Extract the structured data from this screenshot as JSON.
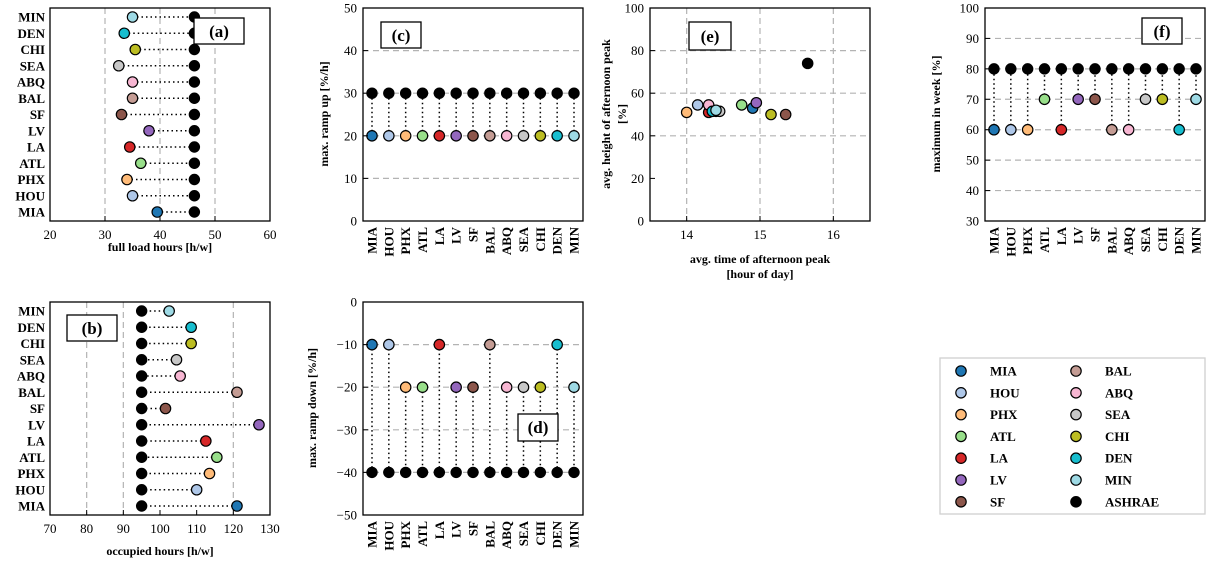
{
  "figure": {
    "cities": [
      "MIA",
      "HOU",
      "PHX",
      "ATL",
      "LA",
      "LV",
      "SF",
      "BAL",
      "ABQ",
      "SEA",
      "CHI",
      "DEN",
      "MIN"
    ],
    "colors": {
      "MIA": "#1f77b4",
      "HOU": "#aec7e8",
      "PHX": "#ffbb78",
      "ATL": "#98df8a",
      "LA": "#d62728",
      "LV": "#9467bd",
      "SF": "#8c564b",
      "BAL": "#c49c94",
      "ABQ": "#f7b6d2",
      "SEA": "#c7c7c7",
      "CHI": "#bcbd22",
      "DEN": "#17becf",
      "MIN": "#9edae5",
      "ASHRAE": "#000000"
    }
  },
  "panels": {
    "a": {
      "label": "(a)",
      "xlabel": "full load hours [h/w]"
    },
    "b": {
      "label": "(b)",
      "xlabel": "occupied hours [h/w]"
    },
    "c": {
      "label": "(c)",
      "ylabel": "max. ramp up [%/h]"
    },
    "d": {
      "label": "(d)",
      "ylabel": "max. ramp down [%/h]"
    },
    "e": {
      "label": "(e)",
      "xlabel_line1": "avg. time of afternoon peak",
      "xlabel_line2": "[hour of day]",
      "ylabel_line1": "avg. height of afternoon peak",
      "ylabel_line2": "[%]"
    },
    "f": {
      "label": "(f)",
      "ylabel": "maximum in week [%]"
    }
  },
  "legend": {
    "entries": [
      "MIA",
      "BAL",
      "HOU",
      "ABQ",
      "PHX",
      "SEA",
      "ATL",
      "CHI",
      "LA",
      "DEN",
      "LV",
      "MIN",
      "SF",
      "ASHRAE"
    ]
  },
  "chart_data": [
    {
      "panel": "a",
      "type": "dot-range",
      "title": "(a)",
      "xlabel": "full load hours [h/w]",
      "categories": [
        "MIN",
        "DEN",
        "CHI",
        "SEA",
        "ABQ",
        "BAL",
        "SF",
        "LV",
        "LA",
        "ATL",
        "PHX",
        "HOU",
        "MIA"
      ],
      "xlim": [
        20,
        60
      ],
      "xticks": [
        20,
        30,
        40,
        50,
        60
      ],
      "vlines": [
        30,
        40,
        50
      ],
      "series": [
        {
          "name": "city",
          "values": [
            35,
            33.5,
            35.5,
            32.5,
            35,
            35,
            33,
            38,
            34.5,
            36.5,
            34,
            35,
            39.5
          ]
        },
        {
          "name": "ASHRAE",
          "values": [
            46.25,
            46.25,
            46.25,
            46.25,
            46.25,
            46.25,
            46.25,
            46.25,
            46.25,
            46.25,
            46.25,
            46.25,
            46.25
          ]
        }
      ]
    },
    {
      "panel": "b",
      "type": "dot-range",
      "title": "(b)",
      "xlabel": "occupied hours [h/w]",
      "categories": [
        "MIN",
        "DEN",
        "CHI",
        "SEA",
        "ABQ",
        "BAL",
        "SF",
        "LV",
        "LA",
        "ATL",
        "PHX",
        "HOU",
        "MIA"
      ],
      "xlim": [
        70,
        130
      ],
      "xticks": [
        70,
        80,
        90,
        100,
        110,
        120,
        130
      ],
      "vlines": [
        80,
        90,
        120
      ],
      "series": [
        {
          "name": "city",
          "values": [
            102.5,
            108.5,
            108.5,
            104.5,
            105.5,
            121,
            101.5,
            127,
            112.5,
            115.5,
            113.5,
            110,
            121
          ]
        },
        {
          "name": "ASHRAE",
          "values": [
            95,
            95,
            95,
            95,
            95,
            95,
            95,
            95,
            95,
            95,
            95,
            95,
            95
          ]
        }
      ]
    },
    {
      "panel": "c",
      "type": "dot-range",
      "title": "(c)",
      "ylabel": "max. ramp up [%/h]",
      "categories": [
        "MIA",
        "HOU",
        "PHX",
        "ATL",
        "LA",
        "LV",
        "SF",
        "BAL",
        "ABQ",
        "SEA",
        "CHI",
        "DEN",
        "MIN"
      ],
      "ylim": [
        0,
        50
      ],
      "yticks": [
        0,
        10,
        20,
        30,
        40,
        50
      ],
      "hlines": [
        10,
        20,
        30,
        40
      ],
      "series": [
        {
          "name": "city",
          "values": [
            20,
            20,
            20,
            20,
            20,
            20,
            20,
            20,
            20,
            20,
            20,
            20,
            20
          ]
        },
        {
          "name": "ASHRAE",
          "values": [
            30,
            30,
            30,
            30,
            30,
            30,
            30,
            30,
            30,
            30,
            30,
            30,
            30
          ]
        }
      ]
    },
    {
      "panel": "d",
      "type": "dot-range",
      "title": "(d)",
      "ylabel": "max. ramp down [%/h]",
      "categories": [
        "MIA",
        "HOU",
        "PHX",
        "ATL",
        "LA",
        "LV",
        "SF",
        "BAL",
        "ABQ",
        "SEA",
        "CHI",
        "DEN",
        "MIN"
      ],
      "ylim": [
        -50,
        0
      ],
      "yticks": [
        0,
        -10,
        -20,
        -30,
        -40,
        -50
      ],
      "hlines": [
        -10,
        -20,
        -30,
        -40
      ],
      "series": [
        {
          "name": "city",
          "values": [
            -10,
            -10,
            -20,
            -20,
            -10,
            -20,
            -20,
            -10,
            -20,
            -20,
            -20,
            -10,
            -20
          ]
        },
        {
          "name": "ASHRAE",
          "values": [
            -40,
            -40,
            -40,
            -40,
            -40,
            -40,
            -40,
            -40,
            -40,
            -40,
            -40,
            -40,
            -40
          ]
        }
      ]
    },
    {
      "panel": "e",
      "type": "scatter",
      "title": "(e)",
      "xlabel": "avg. time of afternoon peak [hour of day]",
      "ylabel": "avg. height of afternoon peak [%]",
      "xlim": [
        13.5,
        16.5
      ],
      "xticks": [
        14,
        15,
        16
      ],
      "ylim": [
        0,
        100
      ],
      "yticks": [
        0,
        20,
        40,
        60,
        80,
        100
      ],
      "grid_x": [
        14,
        15,
        16
      ],
      "grid_y": [
        40,
        60,
        80
      ],
      "points": [
        {
          "name": "MIA",
          "x": 14.9,
          "y": 53
        },
        {
          "name": "HOU",
          "x": 14.15,
          "y": 54.5
        },
        {
          "name": "PHX",
          "x": 14.0,
          "y": 51
        },
        {
          "name": "ATL",
          "x": 14.75,
          "y": 54.5
        },
        {
          "name": "LA",
          "x": 14.3,
          "y": 51
        },
        {
          "name": "LV",
          "x": 14.95,
          "y": 55.5
        },
        {
          "name": "SF",
          "x": 15.35,
          "y": 50
        },
        {
          "name": "BAL",
          "x": 14.4,
          "y": 51.5
        },
        {
          "name": "ABQ",
          "x": 14.3,
          "y": 54.5
        },
        {
          "name": "SEA",
          "x": 14.45,
          "y": 51.5
        },
        {
          "name": "CHI",
          "x": 15.15,
          "y": 50
        },
        {
          "name": "DEN",
          "x": 14.35,
          "y": 51.5
        },
        {
          "name": "MIN",
          "x": 14.4,
          "y": 52
        },
        {
          "name": "ASHRAE",
          "x": 15.65,
          "y": 74
        }
      ]
    },
    {
      "panel": "f",
      "type": "dot-range",
      "title": "(f)",
      "ylabel": "maximum in week [%]",
      "categories": [
        "MIA",
        "HOU",
        "PHX",
        "ATL",
        "LA",
        "LV",
        "SF",
        "BAL",
        "ABQ",
        "SEA",
        "CHI",
        "DEN",
        "MIN"
      ],
      "ylim": [
        30,
        100
      ],
      "yticks": [
        30,
        40,
        50,
        60,
        70,
        80,
        90,
        100
      ],
      "hlines": [
        40,
        50,
        60,
        70,
        80,
        90
      ],
      "series": [
        {
          "name": "city",
          "values": [
            60,
            60,
            60,
            70,
            60,
            70,
            70,
            60,
            60,
            70,
            70,
            60,
            70
          ]
        },
        {
          "name": "ASHRAE",
          "values": [
            80,
            80,
            80,
            80,
            80,
            80,
            80,
            80,
            80,
            80,
            80,
            80,
            80
          ]
        }
      ]
    }
  ]
}
